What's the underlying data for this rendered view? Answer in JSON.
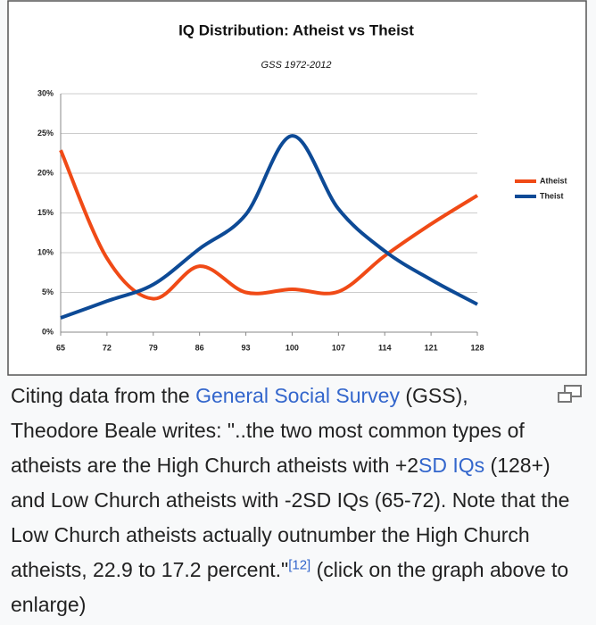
{
  "chart_data": {
    "type": "line",
    "title": "IQ Distribution: Atheist vs Theist",
    "subtitle": "GSS 1972-2012",
    "x": [
      65,
      72,
      79,
      86,
      93,
      100,
      107,
      114,
      121,
      128
    ],
    "xlim": [
      65,
      128
    ],
    "xticks": [
      65,
      72,
      79,
      86,
      93,
      100,
      107,
      114,
      121,
      128
    ],
    "ylim": [
      0,
      30
    ],
    "yticks": [
      {
        "value": 0,
        "label": "0%"
      },
      {
        "value": 5,
        "label": "5%"
      },
      {
        "value": 10,
        "label": "10%"
      },
      {
        "value": 15,
        "label": "15%"
      },
      {
        "value": 20,
        "label": "20%"
      },
      {
        "value": 25,
        "label": "25%"
      },
      {
        "value": 30,
        "label": "30%"
      }
    ],
    "grid": true,
    "legend": "right",
    "smooth": true,
    "series": [
      {
        "name": "Atheist",
        "color": "#f04a16",
        "values": [
          22.9,
          9.3,
          4.2,
          8.3,
          5.0,
          5.4,
          5.1,
          9.6,
          13.6,
          17.2
        ]
      },
      {
        "name": "Theist",
        "color": "#0d4a96",
        "values": [
          1.8,
          3.9,
          6.0,
          10.5,
          14.8,
          24.7,
          15.5,
          10.2,
          6.6,
          3.5
        ]
      }
    ]
  },
  "caption": {
    "parts": [
      "Citing data from the ",
      "General Social Survey",
      " (GSS), Theodore Beale writes: \"..the two most common types of atheists are the High Church atheists with +2",
      "SD IQs",
      " (128+) and Low Church atheists with -2SD IQs (65-72). Note that the Low Church atheists actually outnumber the High Church atheists, 22.9 to 17.2 percent.\"",
      "[12]",
      " (click on the graph above to enlarge)"
    ]
  }
}
